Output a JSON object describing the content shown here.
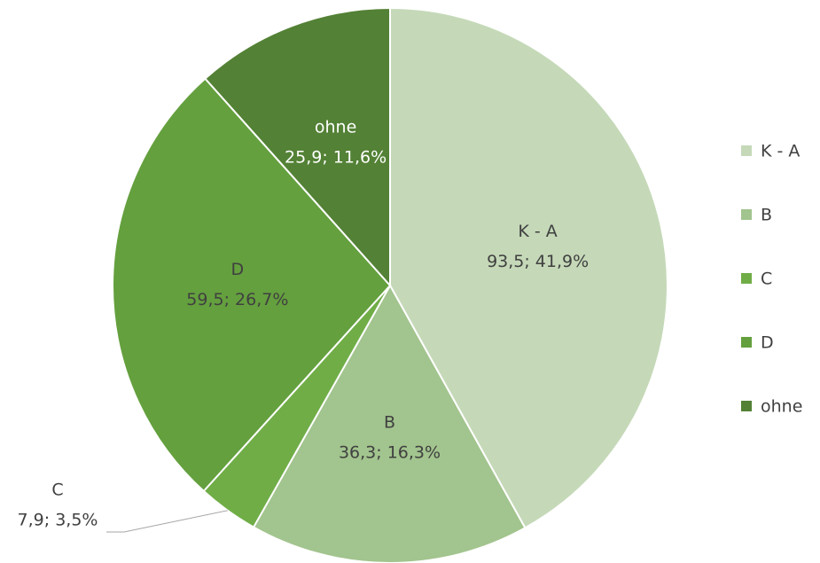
{
  "chart_data": {
    "type": "pie",
    "categories": [
      "K - A",
      "B",
      "C",
      "D",
      "ohne"
    ],
    "values": [
      93.5,
      36.3,
      7.9,
      59.5,
      25.9
    ],
    "value_labels": [
      "93,5; 41,9%",
      "36,3; 16,3%",
      "7,9; 3,5%",
      "59,5; 26,7%",
      "25,9; 11,6%"
    ],
    "colors": [
      "#c5d9b8",
      "#a2c48e",
      "#70ad47",
      "#64a03e",
      "#538135"
    ],
    "legend": "right"
  }
}
